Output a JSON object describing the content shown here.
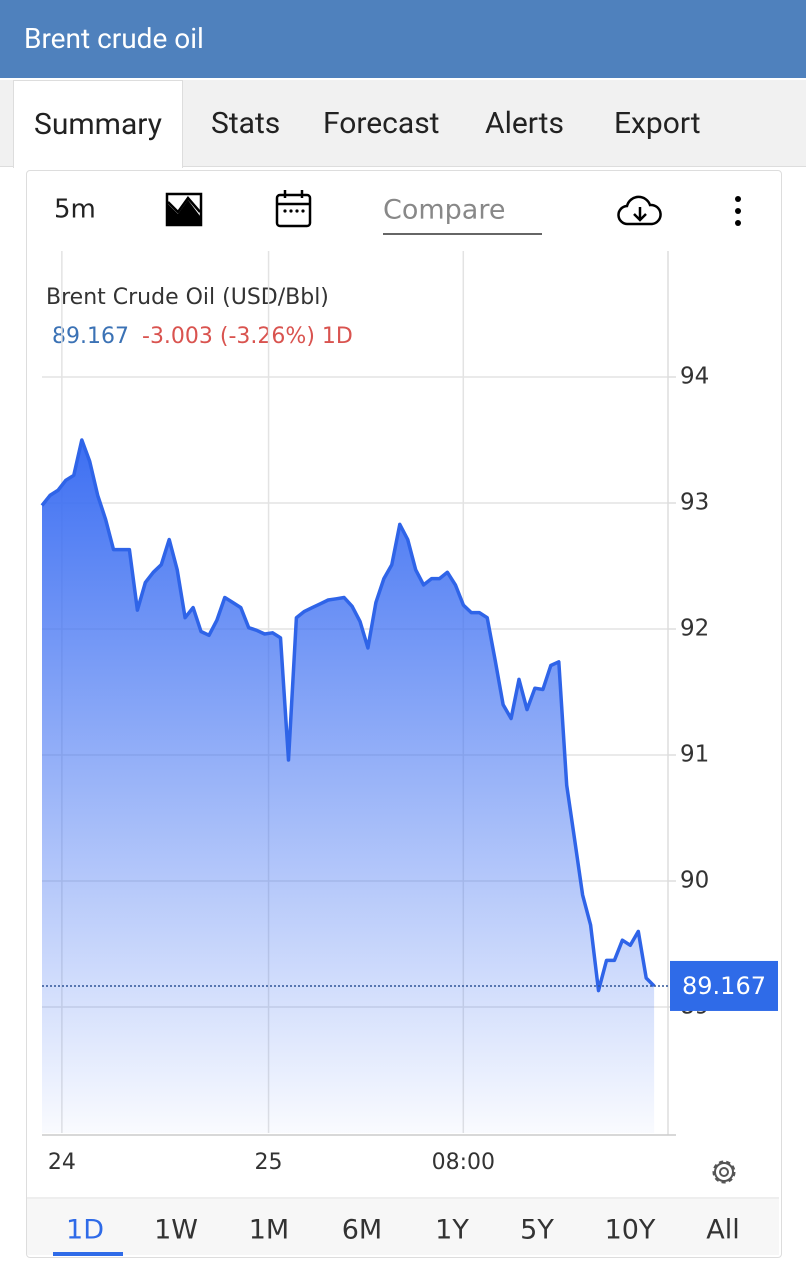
{
  "header": {
    "title": "Brent crude oil"
  },
  "tabs": [
    "Summary",
    "Stats",
    "Forecast",
    "Alerts",
    "Export"
  ],
  "toolbar": {
    "interval": "5m",
    "compare_placeholder": "Compare"
  },
  "ranges": [
    "1D",
    "1W",
    "1M",
    "6M",
    "1Y",
    "5Y",
    "10Y",
    "All"
  ],
  "chart_data": {
    "type": "area",
    "title": "Brent Crude Oil (USD/Bbl)",
    "last_value": 89.167,
    "change": "-3.003 (-3.26%) 1D",
    "color": "#2f64e8",
    "values": [
      92.98,
      93.06,
      93.1,
      93.18,
      93.22,
      93.5,
      93.33,
      93.06,
      92.87,
      92.63,
      92.63,
      92.63,
      92.15,
      92.37,
      92.45,
      92.51,
      92.71,
      92.47,
      92.09,
      92.17,
      91.98,
      91.95,
      92.07,
      92.25,
      92.21,
      92.17,
      92.01,
      91.99,
      91.96,
      91.97,
      91.93,
      90.96,
      92.09,
      92.14,
      92.17,
      92.2,
      92.23,
      92.24,
      92.25,
      92.18,
      92.06,
      91.85,
      92.21,
      92.4,
      92.51,
      92.83,
      92.71,
      92.47,
      92.35,
      92.4,
      92.4,
      92.45,
      92.35,
      92.19,
      92.13,
      92.13,
      92.09,
      91.75,
      91.4,
      91.29,
      91.6,
      91.36,
      91.53,
      91.52,
      91.71,
      91.74,
      90.76,
      90.33,
      89.89,
      89.65,
      89.13,
      89.37,
      89.37,
      89.53,
      89.49,
      89.6,
      89.23,
      89.167
    ],
    "xlim": [
      0,
      78.75
    ],
    "xticks": [
      {
        "value": 2.5,
        "label": "24"
      },
      {
        "value": 28.5,
        "label": "25"
      },
      {
        "value": 53,
        "label": "08:00"
      }
    ],
    "ylim": [
      88,
      95
    ],
    "yticks": [
      89,
      90,
      91,
      92,
      93,
      94
    ],
    "grid": true
  }
}
